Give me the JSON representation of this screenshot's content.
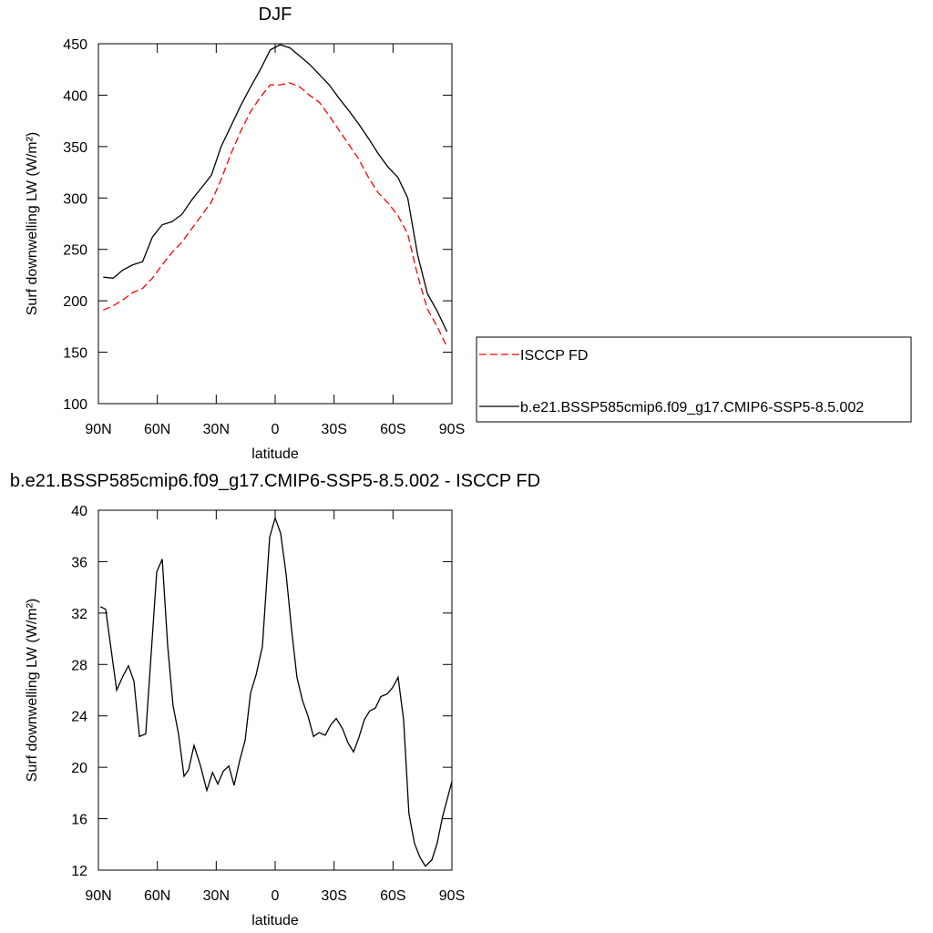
{
  "chart_data": [
    {
      "type": "line",
      "title": "DJF",
      "xlabel": "latitude",
      "ylabel": "Surf downwelling LW (W/m²)",
      "x": [
        87.5,
        82.5,
        77.5,
        72.5,
        67.5,
        62.5,
        57.5,
        52.5,
        47.5,
        42.5,
        37.5,
        32.5,
        27.5,
        22.5,
        17.5,
        12.5,
        7.5,
        2.5,
        -2.5,
        -7.5,
        -12.5,
        -17.5,
        -22.5,
        -27.5,
        -32.5,
        -37.5,
        -42.5,
        -47.5,
        -52.5,
        -57.5,
        -62.5,
        -67.5,
        -72.5,
        -77.5,
        -82.5,
        -87.5
      ],
      "series": [
        {
          "name": "ISCCP FD",
          "color": "#ff0000",
          "dash": true,
          "values": [
            191,
            195,
            201,
            208,
            212,
            222,
            235,
            247,
            257,
            270,
            283,
            296,
            318,
            343,
            365,
            384,
            398,
            410,
            410,
            412,
            408,
            400,
            393,
            380,
            366,
            352,
            338,
            320,
            305,
            295,
            283,
            265,
            225,
            192,
            175,
            155
          ]
        },
        {
          "name": "b.e21.BSSP585cmip6.f09_g17.CMIP6-SSP5-8.5.002",
          "color": "#000000",
          "dash": false,
          "values": [
            223,
            222,
            230,
            235,
            238,
            262,
            274,
            277,
            284,
            298,
            310,
            322,
            350,
            370,
            390,
            408,
            425,
            444,
            449,
            446,
            438,
            430,
            420,
            410,
            397,
            385,
            372,
            358,
            343,
            330,
            320,
            300,
            245,
            207,
            190,
            170
          ]
        }
      ],
      "xlim": [
        90,
        -90
      ],
      "xticks": [
        {
          "value": 90,
          "label": "90N"
        },
        {
          "value": 60,
          "label": "60N"
        },
        {
          "value": 30,
          "label": "30N"
        },
        0,
        {
          "value": -30,
          "label": "30S"
        },
        {
          "value": -60,
          "label": "60S"
        },
        {
          "value": -90,
          "label": "90S"
        }
      ],
      "ylim": [
        100,
        450
      ],
      "yticks": [
        100,
        150,
        200,
        250,
        300,
        350,
        400,
        450
      ],
      "legend": "right"
    },
    {
      "type": "line",
      "title": "b.e21.BSSP585cmip6.f09_g17.CMIP6-SSP5-8.5.002 - ISCCP FD",
      "xlabel": "latitude",
      "ylabel": "Surf downwelling LW (W/m²)",
      "x": [
        89,
        86.3,
        80.7,
        77.5,
        74.7,
        71.9,
        69.1,
        65.9,
        60.3,
        57.5,
        54.7,
        52.0,
        49.2,
        46.4,
        44.1,
        41.3,
        38.0,
        34.8,
        31.9,
        29.2,
        26.4,
        23.6,
        20.9,
        18.1,
        15.3,
        12.5,
        9.7,
        6.5,
        2.8,
        0,
        -2.8,
        -5.6,
        -8.3,
        -11.1,
        -13.9,
        -16.7,
        -19.5,
        -22.3,
        -25.5,
        -28.3,
        -31.1,
        -34.3,
        -37.1,
        -39.9,
        -42.6,
        -45.4,
        -48.2,
        -51.0,
        -53.8,
        -57.0,
        -59.8,
        -62.6,
        -65.4,
        -68.1,
        -70.9,
        -73.7,
        -76.5,
        -79.8,
        -82.5,
        -85.3,
        -90
      ],
      "values": [
        32.5,
        32.3,
        26.0,
        27.1,
        27.9,
        26.7,
        22.4,
        22.6,
        35.2,
        36.2,
        29.4,
        24.8,
        22.6,
        19.3,
        19.8,
        21.7,
        20.1,
        18.2,
        19.6,
        18.7,
        19.7,
        20.1,
        18.6,
        20.5,
        22.1,
        25.8,
        27.2,
        29.4,
        37.9,
        39.4,
        38.2,
        35.0,
        30.8,
        27.0,
        25.2,
        24.0,
        22.4,
        22.7,
        22.5,
        23.3,
        23.8,
        23.0,
        21.9,
        21.2,
        22.3,
        23.7,
        24.4,
        24.6,
        25.5,
        25.7,
        26.2,
        27.0,
        23.7,
        16.4,
        14.1,
        13.0,
        12.3,
        12.8,
        14.1,
        16.2,
        18.9
      ],
      "color": "#000000",
      "xlim": [
        90,
        -90
      ],
      "xticks": [
        {
          "value": 90,
          "label": "90N"
        },
        {
          "value": 60,
          "label": "60N"
        },
        {
          "value": 30,
          "label": "30N"
        },
        0,
        {
          "value": -30,
          "label": "30S"
        },
        {
          "value": -60,
          "label": "60S"
        },
        {
          "value": -90,
          "label": "90S"
        }
      ],
      "ylim": [
        12,
        40
      ],
      "yticks": [
        12,
        16,
        20,
        24,
        28,
        32,
        36,
        40
      ]
    }
  ]
}
